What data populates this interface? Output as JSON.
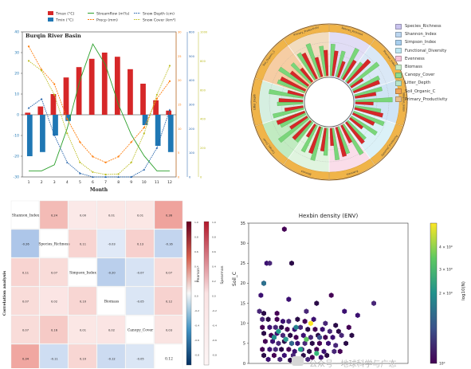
{
  "colors": {
    "temp_max": "#d62728",
    "temp_min": "#1f77b4",
    "streamflow": "#2ca02c",
    "precip": "#ff7f0e",
    "snow_depth": "#1f5fa8",
    "snow_cover": "#bcbd22"
  },
  "chart_data": [
    {
      "type": "bar",
      "title": "Burqin River Basin",
      "xlabel": "Month",
      "categories": [
        "1",
        "2",
        "3",
        "4",
        "5",
        "6",
        "7",
        "8",
        "9",
        "10",
        "11",
        "12"
      ],
      "ylim": [
        -30,
        40
      ],
      "y_ticks": [
        "-30",
        "-20",
        "-10",
        "0",
        "10",
        "20",
        "30",
        "40"
      ],
      "series": [
        {
          "name": "Tmax (°C)",
          "kind": "bar",
          "values": [
            1,
            4,
            10,
            18,
            23,
            27,
            30,
            28,
            22,
            15,
            7,
            2
          ]
        },
        {
          "name": "Tmin (°C)",
          "kind": "bar",
          "values": [
            -20,
            -18,
            -10,
            -3,
            5,
            10,
            12,
            10,
            4,
            -5,
            -15,
            -18
          ]
        },
        {
          "name": "Streamflow (m³/s)",
          "kind": "line",
          "values": [
            10,
            10,
            20,
            80,
            160,
            220,
            185,
            120,
            70,
            35,
            10,
            10
          ],
          "ylim": [
            0,
            240
          ]
        },
        {
          "name": "Precp (mm)",
          "kind": "line",
          "values": [
            45,
            37,
            32,
            20,
            12,
            7,
            5,
            7,
            12,
            17,
            27,
            33
          ],
          "ylim": [
            0,
            50
          ]
        },
        {
          "name": "Snow Depth (cm)",
          "kind": "line",
          "values": [
            380,
            430,
            230,
            80,
            20,
            0,
            0,
            0,
            0,
            40,
            160,
            370
          ],
          "ylim": [
            0,
            800
          ]
        },
        {
          "name": "Snow Cover (km²)",
          "kind": "line",
          "values": [
            2400,
            2200,
            1700,
            900,
            300,
            100,
            50,
            60,
            300,
            900,
            1700,
            2300
          ],
          "ylim": [
            0,
            3000
          ]
        }
      ],
      "right_axes": [
        {
          "ticks": [
            "0",
            "5",
            "10",
            "15",
            "20",
            "25",
            "30"
          ]
        },
        {
          "ticks": [
            "0",
            "100",
            "200",
            "300",
            "400",
            "500",
            "600"
          ]
        },
        {
          "ticks": [
            "0",
            "200",
            "400",
            "600",
            "800",
            "1000"
          ]
        }
      ]
    },
    {
      "type": "bar",
      "subtype": "circular-grouped",
      "legend": [
        "Species_Richness",
        "Shannon_Index",
        "Simpson_Index",
        "Functional_Diversity",
        "Evenness",
        "Biomass",
        "Canopy_Cover",
        "Litter_Depth",
        "Soil_Organic_C",
        "Primary_Productivity"
      ],
      "legend_colors": [
        "#c9c3ee",
        "#bcd6ef",
        "#a9cfee",
        "#bfe6f2",
        "#f6c3d8",
        "#c8ecc6",
        "#8fdc8f",
        "#b6e3c9",
        "#f0a65a",
        "#e8c08c"
      ],
      "groups": [
        "Species_Richness",
        "Shannon_Index",
        "Simpson_Index",
        "Functional_Diversity",
        "Evenness",
        "Biomass",
        "Canopy_Cover",
        "Litter_Depth",
        "Soil_Organic_C",
        "Primary_Productivity"
      ],
      "series": [
        {
          "name": "red",
          "values": [
            0.62,
            0.41,
            0.55,
            0.77,
            0.35,
            0.68,
            0.52,
            0.44,
            0.71,
            0.58,
            0.39,
            0.66,
            0.48,
            0.74,
            0.43,
            0.57,
            0.69,
            0.36,
            0.61,
            0.5,
            0.73,
            0.46,
            0.59,
            0.4,
            0.67,
            0.54,
            0.42,
            0.7,
            0.49,
            0.63
          ]
        },
        {
          "name": "green",
          "values": [
            0.78,
            0.65,
            0.83,
            0.6,
            0.88,
            0.72,
            0.69,
            0.91,
            0.64,
            0.8,
            0.75,
            0.62,
            0.86,
            0.7,
            0.79,
            0.67,
            0.84,
            0.73,
            0.61,
            0.9,
            0.68,
            0.77,
            0.63,
            0.85,
            0.71,
            0.82,
            0.66,
            0.76,
            0.87,
            0.74
          ]
        }
      ]
    },
    {
      "type": "heatmap",
      "title": "Correlation analysis",
      "variables": [
        "Shannon_Index",
        "Species_Richness",
        "Simpson_Index",
        "Biomass",
        "Canopy_Cover",
        "Litter_Depth"
      ],
      "cells": [
        [
          "Shannon_Index",
          "0.24",
          "0.00",
          "0.01",
          "0.01",
          "0.36"
        ],
        [
          "-0.26",
          "Species_Richness",
          "0.11",
          "-0.03",
          "0.13",
          "-0.16"
        ],
        [
          "0.11",
          "0.07",
          "Simpson_Index",
          "-0.20",
          "-0.07",
          "0.07"
        ],
        [
          "0.07",
          "0.02",
          "0.10",
          "Biomass",
          "-0.05",
          "0.12"
        ],
        [
          "0.07",
          "0.16",
          "0.01",
          "0.02",
          "Canopy_Cover",
          "0.03"
        ],
        [
          "0.34",
          "-0.11",
          "0.10",
          "-0.12",
          "-0.05",
          "0.12"
        ]
      ],
      "colorbars": [
        {
          "label": "Pearson",
          "ticks": [
            "1.0",
            "0.8",
            "0.6",
            "0.4",
            "0.2",
            "0.0",
            "-0.2",
            "-0.4",
            "-0.6",
            "-0.8"
          ]
        },
        {
          "label": "Spearman",
          "ticks": [
            "1.0",
            "0.8",
            "0.6",
            "0.4",
            "0.2",
            "0.0",
            "-0.2",
            "-0.4",
            "-0.6",
            "-0.8"
          ]
        }
      ]
    },
    {
      "type": "scatter",
      "subtype": "hexbin",
      "title": "Hexbin density (ENV)",
      "ylabel": "Soil_C",
      "xlabel": "",
      "ylim": [
        0,
        35
      ],
      "y_ticks": [
        "0",
        "5",
        "10",
        "15",
        "20",
        "25",
        "30",
        "35"
      ],
      "colorbar": {
        "label": "log10(N)",
        "ticks": [
          "4 × 10⁰",
          "3 × 10⁰",
          "2 × 10⁰",
          "10⁰"
        ]
      },
      "points": [
        [
          2,
          33.5
        ],
        [
          0.8,
          25
        ],
        [
          1,
          25
        ],
        [
          2.5,
          25
        ],
        [
          0.6,
          20
        ],
        [
          0.4,
          17
        ],
        [
          0.3,
          13
        ],
        [
          0.6,
          12.5
        ],
        [
          1.5,
          12.5
        ],
        [
          2.3,
          16
        ],
        [
          3.5,
          13
        ],
        [
          4.2,
          15
        ],
        [
          5.2,
          17
        ],
        [
          6.1,
          13
        ],
        [
          0.5,
          11
        ],
        [
          0.9,
          11
        ],
        [
          1.5,
          11
        ],
        [
          1.9,
          10.5
        ],
        [
          2.3,
          10.5
        ],
        [
          2.9,
          11
        ],
        [
          3.4,
          10.5
        ],
        [
          4,
          11
        ],
        [
          4.8,
          10
        ],
        [
          5.5,
          9.5
        ],
        [
          0.5,
          9
        ],
        [
          1,
          9
        ],
        [
          1.4,
          9
        ],
        [
          1.8,
          9
        ],
        [
          2.2,
          8.5
        ],
        [
          2.7,
          8.5
        ],
        [
          3.1,
          9
        ],
        [
          3.6,
          8.5
        ],
        [
          4.1,
          8.5
        ],
        [
          4.6,
          8.5
        ],
        [
          5.1,
          8
        ],
        [
          5.7,
          8
        ],
        [
          6.4,
          9
        ],
        [
          7,
          12
        ],
        [
          8.1,
          15
        ],
        [
          0.6,
          7.5
        ],
        [
          1.1,
          7
        ],
        [
          1.5,
          7.5
        ],
        [
          1.9,
          7
        ],
        [
          2.4,
          7
        ],
        [
          2.8,
          6.5
        ],
        [
          3.3,
          7
        ],
        [
          3.8,
          6.5
        ],
        [
          4.3,
          7
        ],
        [
          4.8,
          6.5
        ],
        [
          5.3,
          6.5
        ],
        [
          5.9,
          7
        ],
        [
          6.6,
          7
        ],
        [
          0.7,
          5.5
        ],
        [
          1.2,
          5.5
        ],
        [
          1.6,
          5
        ],
        [
          2,
          5.5
        ],
        [
          2.5,
          5
        ],
        [
          2.9,
          5
        ],
        [
          3.4,
          5
        ],
        [
          3.9,
          5
        ],
        [
          4.4,
          5
        ],
        [
          5,
          5
        ],
        [
          5.5,
          4.5
        ],
        [
          6.2,
          5
        ],
        [
          0.5,
          3.5
        ],
        [
          1,
          3.5
        ],
        [
          1.4,
          3.5
        ],
        [
          1.8,
          3.5
        ],
        [
          2.3,
          3.5
        ],
        [
          2.7,
          3
        ],
        [
          3.2,
          3.5
        ],
        [
          3.7,
          3
        ],
        [
          4.2,
          3.5
        ],
        [
          4.7,
          3
        ],
        [
          5.4,
          3
        ],
        [
          0.6,
          2
        ],
        [
          1.3,
          2
        ],
        [
          2,
          2
        ],
        [
          2.6,
          2
        ],
        [
          3.3,
          2
        ],
        [
          3.9,
          1.5
        ],
        [
          0.9,
          1
        ],
        [
          1.7,
          1
        ],
        [
          2.4,
          0.8
        ],
        [
          3,
          1
        ],
        [
          4.5,
          1.5
        ],
        [
          3.6,
          1
        ],
        [
          4.9,
          2
        ],
        [
          5.8,
          3
        ],
        [
          1.3,
          6.5
        ],
        [
          2.1,
          6
        ],
        [
          3.5,
          6
        ],
        [
          4.4,
          6.5
        ]
      ],
      "hot_points": [
        [
          1.3,
          6.5
        ],
        [
          2.1,
          6
        ],
        [
          3.5,
          6
        ],
        [
          4.4,
          6.5
        ],
        [
          2.5,
          5
        ],
        [
          3.1,
          3.5
        ],
        [
          1.6,
          8
        ],
        [
          2.8,
          9
        ],
        [
          4.2,
          2.5
        ],
        [
          0.6,
          20
        ],
        [
          3.8,
          10
        ]
      ]
    }
  ],
  "watermark": "公众号 · 地球科学与广态"
}
